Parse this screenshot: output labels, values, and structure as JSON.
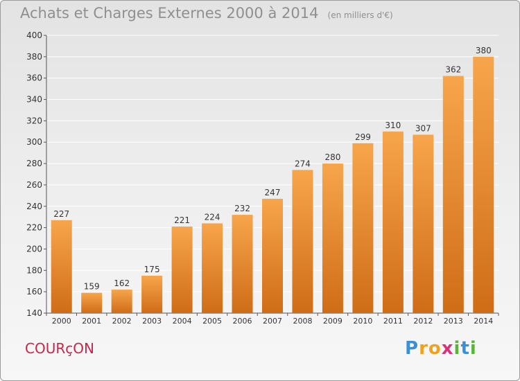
{
  "title": {
    "main": "Achats et Charges Externes 2000 à 2014",
    "unit": "(en milliers d'€)"
  },
  "commune": "COURçON",
  "logo": {
    "text": "Proxiti",
    "letters": [
      {
        "char": "P",
        "color": "#3a8fd6"
      },
      {
        "char": "r",
        "color": "#f0a21f"
      },
      {
        "char": "o",
        "color": "#f0a21f"
      },
      {
        "char": "x",
        "color": "#d9317a"
      },
      {
        "char": "i",
        "color": "#5bb33a"
      },
      {
        "char": "t",
        "color": "#3a8fd6"
      },
      {
        "char": "i",
        "color": "#5bb33a"
      }
    ]
  },
  "colors": {
    "bar_top": "#f7a54c",
    "bar_bottom": "#cf6d17",
    "grid": "#ffffff",
    "axis_text": "#333333",
    "label_text": "#333333"
  },
  "chart_data": {
    "type": "bar",
    "categories": [
      "2000",
      "2001",
      "2002",
      "2003",
      "2004",
      "2005",
      "2006",
      "2007",
      "2008",
      "2009",
      "2010",
      "2011",
      "2012",
      "2013",
      "2014"
    ],
    "values": [
      227,
      159,
      162,
      175,
      221,
      224,
      232,
      247,
      274,
      280,
      299,
      310,
      307,
      362,
      380
    ],
    "ylim": [
      140,
      400
    ],
    "yticks": [
      140,
      160,
      180,
      200,
      220,
      240,
      260,
      280,
      300,
      320,
      340,
      360,
      380,
      400
    ],
    "grid": true,
    "data_labels": true
  }
}
